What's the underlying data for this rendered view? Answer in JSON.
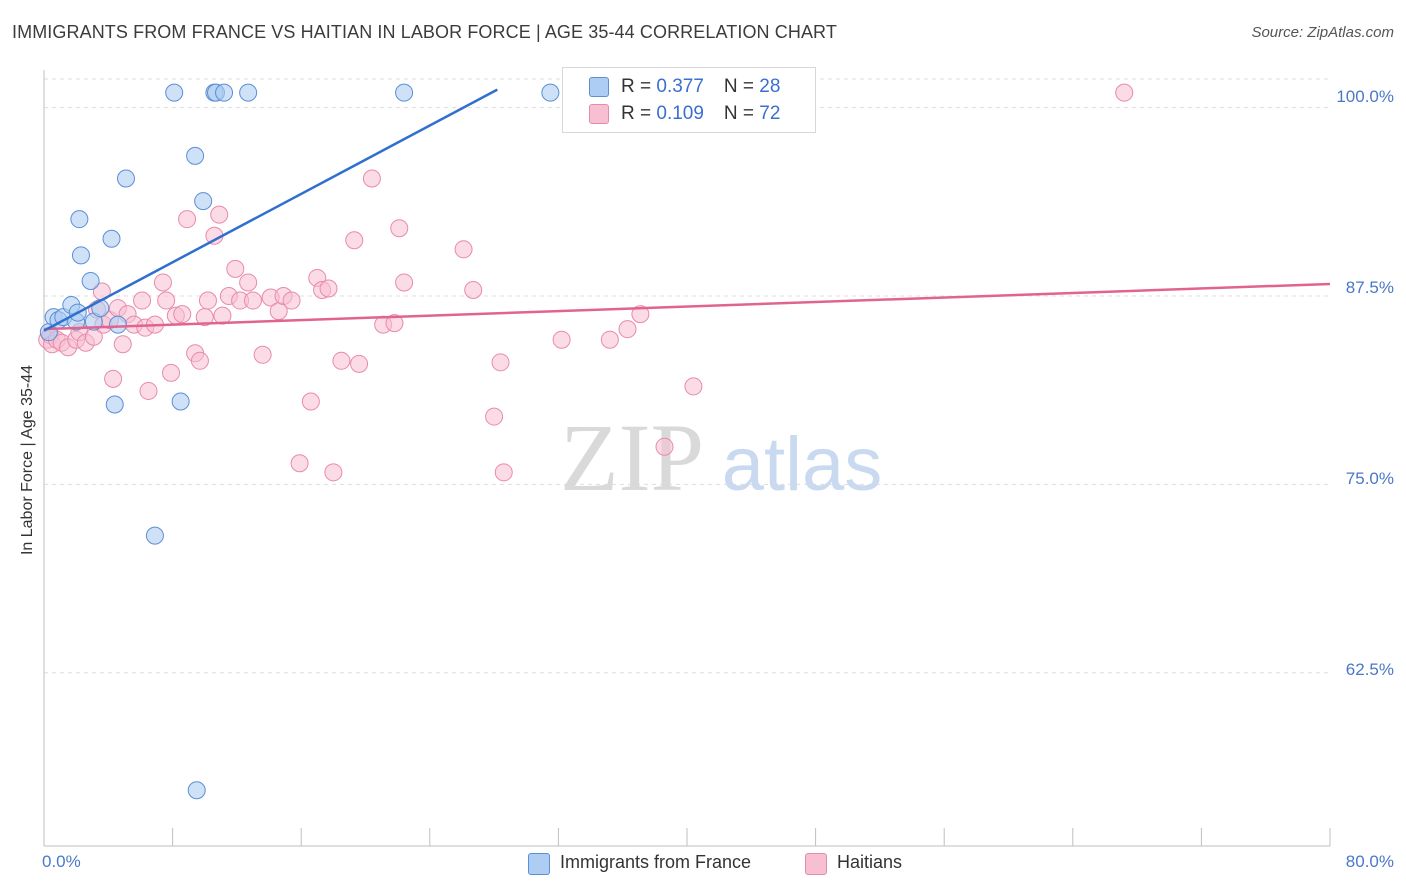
{
  "header": {
    "title": "IMMIGRANTS FROM FRANCE VS HAITIAN IN LABOR FORCE | AGE 35-44 CORRELATION CHART",
    "source": "Source: ZipAtlas.com"
  },
  "watermark": {
    "zip": "ZIP",
    "atlas": "atlas"
  },
  "legend": {
    "france": {
      "r_label": "R = ",
      "r_value": "0.377",
      "n_label": "N = ",
      "n_value": "28",
      "name": "Immigrants from France"
    },
    "haiti": {
      "r_label": "R = ",
      "r_value": "0.109",
      "n_label": "N = ",
      "n_value": "72",
      "name": "Haitians"
    }
  },
  "axes": {
    "ylabel": "In Labor Force | Age 35-44",
    "yticks": [
      "100.0%",
      "87.5%",
      "75.0%",
      "62.5%"
    ],
    "xmin_label": "0.0%",
    "xmax_label": "80.0%"
  },
  "colors": {
    "france_fill": "#aecdf2",
    "france_stroke": "#5b8fd6",
    "france_line": "#2f6fcf",
    "haiti_fill": "#f7c0d2",
    "haiti_stroke": "#e98aab",
    "haiti_line": "#e0648f",
    "grid": "#dddddd",
    "tick_text": "#4a78c8"
  },
  "chart_data": {
    "type": "scatter",
    "title": "IMMIGRANTS FROM FRANCE VS HAITIAN IN LABOR FORCE | AGE 35-44 CORRELATION CHART",
    "xlabel": "",
    "ylabel": "In Labor Force | Age 35-44",
    "xlim": [
      0,
      80
    ],
    "ylim": [
      51,
      102.5
    ],
    "yticks": [
      62.5,
      75.0,
      87.5,
      100.0
    ],
    "series": [
      {
        "name": "Immigrants from France",
        "R": 0.377,
        "N": 28,
        "trend": {
          "x": [
            0,
            28.2
          ],
          "y": [
            85.2,
            101.2
          ]
        },
        "points": [
          [
            0.3,
            85.1
          ],
          [
            0.6,
            86.1
          ],
          [
            0.9,
            85.9
          ],
          [
            1.2,
            86.1
          ],
          [
            1.7,
            86.9
          ],
          [
            2.0,
            85.8
          ],
          [
            2.1,
            86.4
          ],
          [
            2.2,
            92.6
          ],
          [
            2.3,
            90.2
          ],
          [
            2.9,
            88.5
          ],
          [
            3.1,
            85.8
          ],
          [
            3.5,
            86.7
          ],
          [
            4.2,
            91.3
          ],
          [
            4.4,
            80.3
          ],
          [
            4.6,
            85.6
          ],
          [
            5.1,
            95.3
          ],
          [
            6.9,
            71.6
          ],
          [
            8.1,
            101.0
          ],
          [
            8.5,
            80.5
          ],
          [
            9.4,
            96.8
          ],
          [
            9.9,
            93.8
          ],
          [
            10.6,
            101.0
          ],
          [
            10.7,
            101.0
          ],
          [
            11.2,
            101.0
          ],
          [
            12.7,
            101.0
          ],
          [
            22.4,
            101.0
          ],
          [
            31.5,
            101.0
          ],
          [
            9.5,
            54.7
          ]
        ]
      },
      {
        "name": "Haitians",
        "R": 0.109,
        "N": 72,
        "trend": {
          "x": [
            0,
            80
          ],
          "y": [
            85.3,
            88.3
          ]
        },
        "points": [
          [
            0.2,
            84.6
          ],
          [
            0.4,
            84.9
          ],
          [
            0.5,
            84.3
          ],
          [
            0.8,
            84.6
          ],
          [
            1.1,
            84.4
          ],
          [
            1.5,
            84.1
          ],
          [
            2.0,
            84.6
          ],
          [
            2.2,
            85.1
          ],
          [
            2.6,
            84.4
          ],
          [
            3.1,
            84.8
          ],
          [
            3.3,
            86.6
          ],
          [
            3.6,
            87.8
          ],
          [
            3.7,
            85.6
          ],
          [
            4.1,
            85.9
          ],
          [
            4.3,
            82.0
          ],
          [
            4.6,
            86.7
          ],
          [
            4.9,
            84.3
          ],
          [
            5.2,
            86.3
          ],
          [
            5.6,
            85.6
          ],
          [
            6.1,
            87.2
          ],
          [
            6.3,
            85.4
          ],
          [
            6.5,
            81.2
          ],
          [
            6.9,
            85.6
          ],
          [
            7.4,
            88.4
          ],
          [
            7.6,
            87.2
          ],
          [
            7.9,
            82.4
          ],
          [
            8.2,
            86.2
          ],
          [
            8.6,
            86.3
          ],
          [
            8.9,
            92.6
          ],
          [
            9.4,
            83.7
          ],
          [
            9.7,
            83.2
          ],
          [
            10.0,
            86.1
          ],
          [
            10.2,
            87.2
          ],
          [
            10.6,
            91.5
          ],
          [
            10.9,
            92.9
          ],
          [
            11.1,
            86.2
          ],
          [
            11.5,
            87.5
          ],
          [
            11.9,
            89.3
          ],
          [
            12.2,
            87.2
          ],
          [
            12.7,
            88.4
          ],
          [
            13.0,
            87.2
          ],
          [
            13.6,
            83.6
          ],
          [
            14.1,
            87.4
          ],
          [
            14.6,
            86.5
          ],
          [
            14.9,
            87.5
          ],
          [
            15.4,
            87.2
          ],
          [
            15.9,
            76.4
          ],
          [
            16.6,
            80.5
          ],
          [
            17.0,
            88.7
          ],
          [
            17.3,
            87.9
          ],
          [
            17.7,
            88.0
          ],
          [
            18.0,
            75.8
          ],
          [
            18.5,
            83.2
          ],
          [
            19.3,
            91.2
          ],
          [
            19.6,
            83.0
          ],
          [
            20.4,
            95.3
          ],
          [
            21.1,
            85.6
          ],
          [
            21.8,
            85.7
          ],
          [
            22.1,
            92.0
          ],
          [
            22.4,
            88.4
          ],
          [
            26.1,
            90.6
          ],
          [
            26.7,
            87.9
          ],
          [
            28.0,
            79.5
          ],
          [
            28.4,
            83.1
          ],
          [
            28.6,
            75.8
          ],
          [
            32.2,
            84.6
          ],
          [
            35.2,
            84.6
          ],
          [
            36.3,
            85.3
          ],
          [
            37.1,
            86.3
          ],
          [
            38.6,
            77.5
          ],
          [
            40.4,
            81.5
          ],
          [
            67.2,
            101.0
          ]
        ]
      }
    ]
  }
}
